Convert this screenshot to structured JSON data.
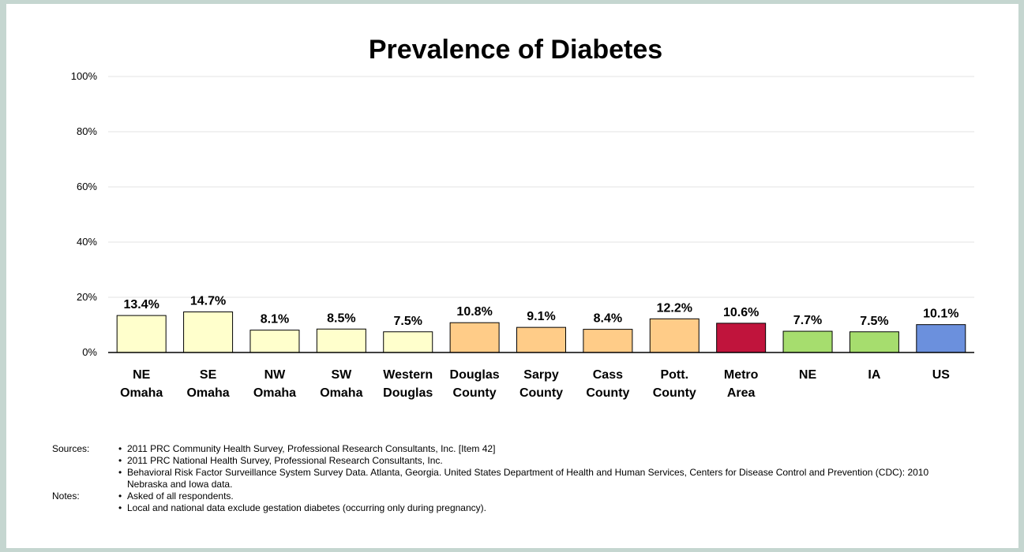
{
  "chart_data": {
    "type": "bar",
    "title": "Prevalence of Diabetes",
    "categories": [
      [
        "NE",
        "Omaha"
      ],
      [
        "SE",
        "Omaha"
      ],
      [
        "NW",
        "Omaha"
      ],
      [
        "SW",
        "Omaha"
      ],
      [
        "Western",
        "Douglas"
      ],
      [
        "Douglas",
        "County"
      ],
      [
        "Sarpy",
        "County"
      ],
      [
        "Cass",
        "County"
      ],
      [
        "Pott.",
        "County"
      ],
      [
        "Metro",
        "Area"
      ],
      [
        "NE"
      ],
      [
        "IA"
      ],
      [
        "US"
      ]
    ],
    "values": [
      13.4,
      14.7,
      8.1,
      8.5,
      7.5,
      10.8,
      9.1,
      8.4,
      12.2,
      10.6,
      7.7,
      7.5,
      10.1
    ],
    "value_labels": [
      "13.4%",
      "14.7%",
      "8.1%",
      "8.5%",
      "7.5%",
      "10.8%",
      "9.1%",
      "8.4%",
      "12.2%",
      "10.6%",
      "7.7%",
      "7.5%",
      "10.1%"
    ],
    "bar_colors": [
      "#ffffcc",
      "#ffffcc",
      "#ffffcc",
      "#ffffcc",
      "#ffffcc",
      "#ffcc88",
      "#ffcc88",
      "#ffcc88",
      "#ffcc88",
      "#c0143c",
      "#a6dd6e",
      "#a6dd6e",
      "#6b90dd"
    ],
    "yticks": [
      "0%",
      "20%",
      "40%",
      "60%",
      "80%",
      "100%"
    ],
    "ylim": [
      0,
      100
    ],
    "grid": true,
    "xlabel": "",
    "ylabel": ""
  },
  "footnotes": {
    "sources_label": "Sources:",
    "sources": [
      "2011 PRC Community Health Survey,  Professional Research Consultants, Inc.  [Item 42]",
      "2011 PRC National Health Survey, Professional Research Consultants, Inc.",
      "Behavioral Risk Factor Surveillance System Survey Data.  Atlanta, Georgia.  United States Department of Health and Human Services, Centers for Disease Control and Prevention (CDC): 2010 Nebraska and Iowa data."
    ],
    "notes_label": "Notes:",
    "notes": [
      "Asked of all respondents.",
      "Local and national data exclude gestation diabetes (occurring only during pregnancy)."
    ]
  }
}
